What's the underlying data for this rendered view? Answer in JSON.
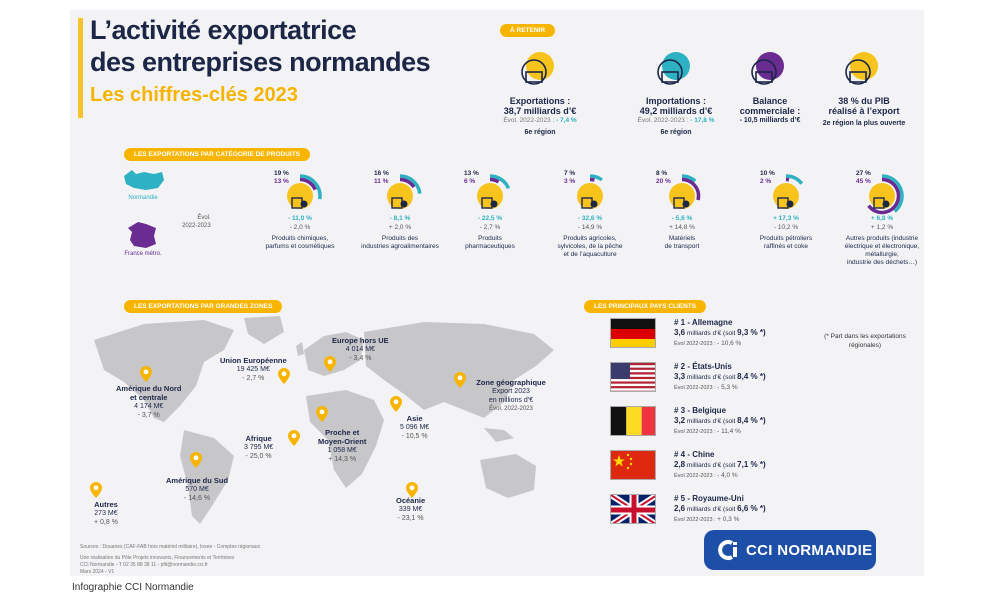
{
  "title_line1": "L’activité exportatrice",
  "title_line2": "des entreprises normandes",
  "subtitle": "Les chiffres-clés 2023",
  "retenir_label": "À retenir",
  "key_figures": [
    {
      "label1": "Exportations :",
      "label2": "38,7 milliards d’€",
      "evol": "Évol. 2022-2023 : ",
      "evol_value": "- 7,4 %",
      "rank": "6e région",
      "icon": "export-building-icon"
    },
    {
      "label1": "Importations :",
      "label2": "49,2 milliards d’€",
      "evol": "Évol. 2022-2023 : ",
      "evol_value": "- 17,8 %",
      "rank": "6e région",
      "icon": "import-building-icon"
    },
    {
      "label1": "Balance",
      "label2": "commerciale :",
      "evol": "- 10,5 milliards d’€",
      "icon": "scale-icon"
    },
    {
      "label1": "38 % du PIB",
      "label2": "réalisé à l’export",
      "rank": "2e région la plus ouverte",
      "icon": "globe-euro-icon"
    }
  ],
  "categories_header": "Les exportations par catégorie de produits",
  "legend": {
    "normandie": "Normandie",
    "france": "France métro."
  },
  "evol_label_line1": "Évol.",
  "evol_label_line2": "2022-2023",
  "chart_data": {
    "type": "bar",
    "title": "Les exportations par catégorie de produits",
    "categories": [
      "Produits chimiques, parfums et cosmétiques",
      "Produits des industries agroalimentaires",
      "Produits pharmaceutiques",
      "Produits agricoles, sylvicoles, de la pêche et de l’aquaculture",
      "Matériels de transport",
      "Produits pétroliers raffinés et coke",
      "Autres produits (industrie électrique et électronique, métallurgie, industrie des déchets…)"
    ],
    "series": [
      {
        "name": "Normandie",
        "values": [
          19,
          16,
          13,
          7,
          8,
          10,
          27
        ],
        "evol": [
          "- 11,0 %",
          "- 8,1 %",
          "- 22,5 %",
          "- 32,6 %",
          "- 5,6 %",
          "+ 17,3 %",
          "+ 6,8 %"
        ]
      },
      {
        "name": "France métro.",
        "values": [
          13,
          11,
          6,
          3,
          20,
          2,
          45
        ],
        "evol": [
          "- 2,0 %",
          "+ 2,0 %",
          "- 2,7 %",
          "- 14,9 %",
          "+ 14,8 %",
          "- 10,2 %",
          "+ 1,2 %"
        ]
      }
    ],
    "share_labels": [
      [
        "19 %",
        "13 %"
      ],
      [
        "16 %",
        "11 %"
      ],
      [
        "13 %",
        "6 %"
      ],
      [
        "7 %",
        "3 %"
      ],
      [
        "8 %",
        "20 %"
      ],
      [
        "10 %",
        "2 %"
      ],
      [
        "27 %",
        "45 %"
      ]
    ],
    "unit": "%",
    "colors": {
      "normandie": "#2eb1c3",
      "france": "#6a2c91",
      "disc": "#f7c41e"
    }
  },
  "category_names": [
    [
      "Produits chimiques,",
      "parfums et cosmétiques"
    ],
    [
      "Produits des",
      "industries agroalimentaires"
    ],
    [
      "Produits",
      "pharmaceutiques"
    ],
    [
      "Produits agricoles,",
      "sylvicoles, de la pêche",
      "et de l’aquaculture"
    ],
    [
      "Matériels",
      "de transport"
    ],
    [
      "Produits pétroliers",
      "raffinés et coke"
    ],
    [
      "Autres produits (industrie",
      "électrique et électronique,",
      "métallurgie,",
      "industrie des déchets…)"
    ]
  ],
  "category_icons": [
    "flask-icon",
    "wheat-icon",
    "pills-icon",
    "fish-icon",
    "car-icon",
    "oil-barrel-icon",
    "gears-icon"
  ],
  "zones_header": "Les exportations par grandes zones",
  "zones": [
    {
      "name": "Union Européenne",
      "value": "19 425 M€",
      "evol": "- 2,7 %"
    },
    {
      "name": "Europe hors UE",
      "value": "4 014 M€",
      "evol": "- 3,4 %"
    },
    {
      "name1": "Amérique du Nord",
      "name2": "et centrale",
      "value": "4 174 M€",
      "evol": "- 3,7 %"
    },
    {
      "name": "Afrique",
      "value": "3 795 M€",
      "evol": "- 25,0 %"
    },
    {
      "name1": "Proche et",
      "name2": "Moyen-Orient",
      "value": "1 058 M€",
      "evol": "+ 14,3 %"
    },
    {
      "name": "Asie",
      "value": "5 096 M€",
      "evol": "- 10,5 %"
    },
    {
      "name": "Amérique du Sud",
      "value": "570 M€",
      "evol": "- 14,6 %"
    },
    {
      "name": "Océanie",
      "value": "339 M€",
      "evol": "- 23,1 %"
    },
    {
      "name": "Autres",
      "value": "273 M€",
      "evol": "+ 0,8 %"
    }
  ],
  "zone_legend": {
    "line1": "Zone géographique",
    "line2": "Export 2023",
    "line3": "en millions d’€",
    "line4": "Évol. 2022-2023"
  },
  "clients_header": "Les principaux pays clients",
  "clients": [
    {
      "rank": "# 1 - Allemagne",
      "value": "3,6",
      "unit": " milliards d’€ (soit ",
      "share": "9,3 %",
      "tail": " *)",
      "evol_label": "Évol 2022-2023 : ",
      "evol": "- 10,6 %",
      "flag": "germany-flag"
    },
    {
      "rank": "# 2 - États-Unis",
      "value": "3,3",
      "unit": " milliards d’€ (soit ",
      "share": "8,4 %",
      "tail": " *)",
      "evol_label": "Évol 2022-2023 : ",
      "evol": "- 5,3 %",
      "flag": "usa-flag"
    },
    {
      "rank": "# 3 - Belgique",
      "value": "3,2",
      "unit": " milliards d’€ (soit ",
      "share": "8,4 %",
      "tail": " *)",
      "evol_label": "Évol 2022-2023 : ",
      "evol": "- 11,4 %",
      "flag": "belgium-flag"
    },
    {
      "rank": "# 4 - Chine",
      "value": "2,8",
      "unit": " milliards d’€ (soit ",
      "share": "7,1 %",
      "tail": " *)",
      "evol_label": "Évol 2022-2023 : ",
      "evol": "- 4,0 %",
      "flag": "china-flag"
    },
    {
      "rank": "# 5 - Royaume-Uni",
      "value": "2,6",
      "unit": " milliards d’€ (soit ",
      "share": "6,6 %",
      "tail": " *)",
      "evol_label": "Évol 2022-2023 : ",
      "evol": "+ 0,3 %",
      "flag": "uk-flag"
    }
  ],
  "clients_note": "(* Part dans les exportations régionales)",
  "sources": {
    "line1": "Sources : Douanes (CAF-FAB hors matériel militaire), Insee - Comptes régionaux",
    "line2": "Une réalisation du Pôle Projets innovants, Financements et Territoires",
    "line3": "CCI Normandie - T 02 35 88 38 11 - pfit@normandie.cci.fr",
    "line4": "Mars 2024 - V1"
  },
  "brand": "CCI NORMANDIE",
  "credit": "Infographie CCI Normandie"
}
